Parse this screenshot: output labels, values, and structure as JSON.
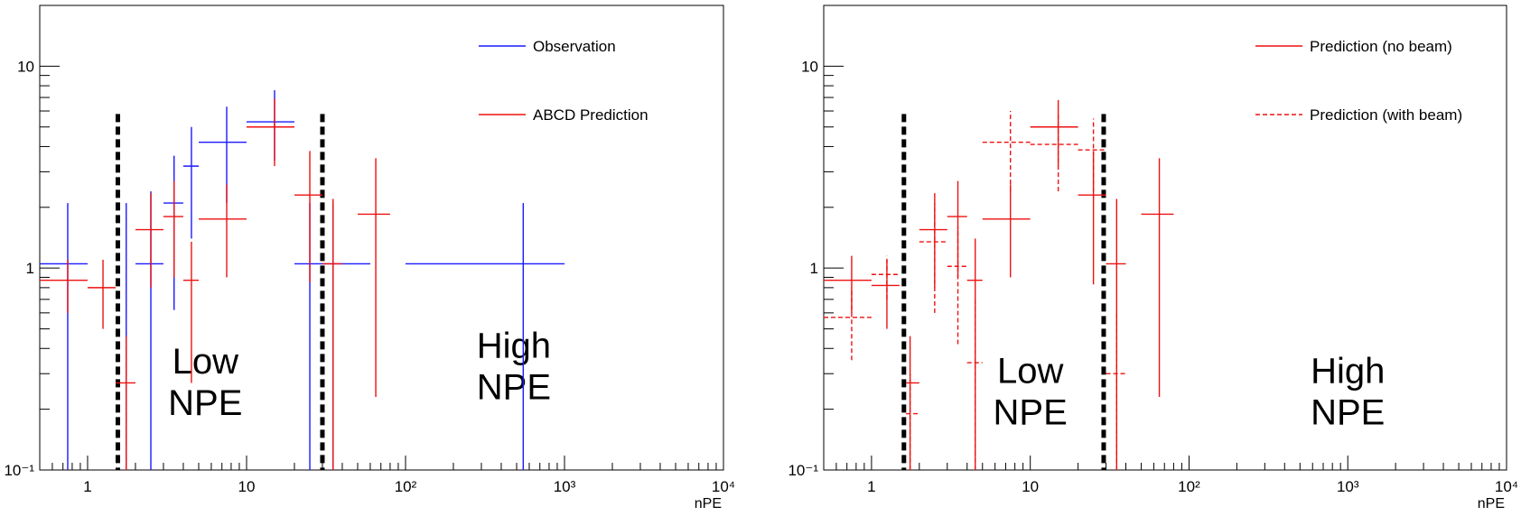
{
  "chart_data": [
    {
      "type": "scatter",
      "subtype": "errorbar",
      "scale": {
        "x": "log",
        "y": "log"
      },
      "xlabel": "nPE",
      "ylabel": "",
      "xlim": [
        0.5,
        10000
      ],
      "ylim": [
        0.1,
        20
      ],
      "x_tick_labels": [
        "1",
        "10",
        "10²",
        "10³",
        "10⁴"
      ],
      "x_tick_values": [
        1,
        10,
        100,
        1000,
        10000
      ],
      "y_tick_labels": [
        "10⁻¹",
        "1",
        "10"
      ],
      "y_tick_values": [
        0.1,
        1,
        10
      ],
      "grid": false,
      "legend_position": "top-right",
      "region_boundaries": [
        1.55,
        30
      ],
      "region_labels": [
        {
          "lines": [
            "Low",
            "NPE"
          ],
          "x": 5.5,
          "y": 0.3
        },
        {
          "lines": [
            "High",
            "NPE"
          ],
          "x": 480,
          "y": 0.36
        }
      ],
      "series": [
        {
          "name": "Observation",
          "color": "#1a1aff",
          "dashed": false,
          "points": [
            {
              "x": 0.75,
              "xlo": 0.5,
              "xhi": 1.0,
              "y": 1.05,
              "ylo": 0.0,
              "yhi": 2.1
            },
            {
              "x": 1.75,
              "xlo": 1.5,
              "xhi": 2.0,
              "y": 0.0,
              "ylo": 0.0,
              "yhi": 2.1
            },
            {
              "x": 2.5,
              "xlo": 2.0,
              "xhi": 3.0,
              "y": 1.05,
              "ylo": 0.0,
              "yhi": 2.4
            },
            {
              "x": 3.5,
              "xlo": 3.0,
              "xhi": 4.0,
              "y": 2.1,
              "ylo": 0.62,
              "yhi": 3.6
            },
            {
              "x": 4.5,
              "xlo": 4.0,
              "xhi": 5.0,
              "y": 3.2,
              "ylo": 1.4,
              "yhi": 5.0
            },
            {
              "x": 7.5,
              "xlo": 5.0,
              "xhi": 10.0,
              "y": 4.2,
              "ylo": 2.1,
              "yhi": 6.3
            },
            {
              "x": 15,
              "xlo": 10.0,
              "xhi": 20.0,
              "y": 5.3,
              "ylo": 3.4,
              "yhi": 7.6
            },
            {
              "x": 25,
              "xlo": 20.0,
              "xhi": 30.0,
              "y": 1.05,
              "ylo": 0.0,
              "yhi": 2.1
            },
            {
              "x": 35,
              "xlo": 30.0,
              "xhi": 60.0,
              "y": 1.05,
              "ylo": 0.0,
              "yhi": 2.1
            },
            {
              "x": 550,
              "xlo": 100.0,
              "xhi": 1000.0,
              "y": 1.05,
              "ylo": 0.0,
              "yhi": 2.1
            }
          ]
        },
        {
          "name": "ABCD Prediction",
          "color": "#ee1111",
          "dashed": false,
          "points": [
            {
              "x": 0.75,
              "xlo": 0.5,
              "xhi": 1.0,
              "y": 0.87,
              "ylo": 0.6,
              "yhi": 1.1
            },
            {
              "x": 1.25,
              "xlo": 1.0,
              "xhi": 1.5,
              "y": 0.8,
              "ylo": 0.5,
              "yhi": 1.1
            },
            {
              "x": 1.75,
              "xlo": 1.5,
              "xhi": 2.0,
              "y": 0.27,
              "ylo": 0.0,
              "yhi": 0.46
            },
            {
              "x": 2.5,
              "xlo": 2.0,
              "xhi": 3.0,
              "y": 1.55,
              "ylo": 0.8,
              "yhi": 2.35
            },
            {
              "x": 3.5,
              "xlo": 3.0,
              "xhi": 4.0,
              "y": 1.8,
              "ylo": 0.9,
              "yhi": 2.7
            },
            {
              "x": 4.5,
              "xlo": 4.0,
              "xhi": 5.0,
              "y": 0.87,
              "ylo": 0.27,
              "yhi": 1.35
            },
            {
              "x": 7.5,
              "xlo": 5.0,
              "xhi": 10.0,
              "y": 1.75,
              "ylo": 0.9,
              "yhi": 2.6
            },
            {
              "x": 15,
              "xlo": 10.0,
              "xhi": 20.0,
              "y": 5.0,
              "ylo": 3.2,
              "yhi": 6.9
            },
            {
              "x": 25,
              "xlo": 20.0,
              "xhi": 30.0,
              "y": 2.3,
              "ylo": 0.85,
              "yhi": 3.8
            },
            {
              "x": 35,
              "xlo": 30.0,
              "xhi": 40.0,
              "y": 1.05,
              "ylo": 0.0,
              "yhi": 2.2
            },
            {
              "x": 65,
              "xlo": 50.0,
              "xhi": 80.0,
              "y": 1.85,
              "ylo": 0.23,
              "yhi": 3.5
            }
          ]
        }
      ]
    },
    {
      "type": "scatter",
      "subtype": "errorbar",
      "scale": {
        "x": "log",
        "y": "log"
      },
      "xlabel": "nPE",
      "ylabel": "",
      "xlim": [
        0.5,
        10000
      ],
      "ylim": [
        0.1,
        20
      ],
      "x_tick_labels": [
        "1",
        "10",
        "10²",
        "10³",
        "10⁴"
      ],
      "x_tick_values": [
        1,
        10,
        100,
        1000,
        10000
      ],
      "y_tick_labels": [
        "10⁻¹",
        "1",
        "10"
      ],
      "y_tick_values": [
        0.1,
        1,
        10
      ],
      "grid": false,
      "legend_position": "top-right",
      "region_boundaries": [
        1.6,
        29
      ],
      "region_labels": [
        {
          "lines": [
            "Low",
            "NPE"
          ],
          "x": 10,
          "y": 0.27
        },
        {
          "lines": [
            "High",
            "NPE"
          ],
          "x": 1000,
          "y": 0.27
        }
      ],
      "series": [
        {
          "name": "Prediction (no beam)",
          "color": "#ee1111",
          "dashed": false,
          "points": [
            {
              "x": 0.75,
              "xlo": 0.5,
              "xhi": 1.0,
              "y": 0.87,
              "ylo": 0.6,
              "yhi": 1.15
            },
            {
              "x": 1.25,
              "xlo": 1.0,
              "xhi": 1.5,
              "y": 0.82,
              "ylo": 0.5,
              "yhi": 1.1
            },
            {
              "x": 1.75,
              "xlo": 1.65,
              "xhi": 2.0,
              "y": 0.27,
              "ylo": 0.0,
              "yhi": 0.46
            },
            {
              "x": 2.5,
              "xlo": 2.0,
              "xhi": 3.0,
              "y": 1.55,
              "ylo": 0.8,
              "yhi": 2.35
            },
            {
              "x": 3.5,
              "xlo": 3.0,
              "xhi": 4.0,
              "y": 1.8,
              "ylo": 0.9,
              "yhi": 2.7
            },
            {
              "x": 4.5,
              "xlo": 4.0,
              "xhi": 5.0,
              "y": 0.87,
              "ylo": 0.0,
              "yhi": 1.4
            },
            {
              "x": 7.5,
              "xlo": 5.0,
              "xhi": 10.0,
              "y": 1.75,
              "ylo": 0.9,
              "yhi": 2.6
            },
            {
              "x": 15,
              "xlo": 10.0,
              "xhi": 20.0,
              "y": 5.0,
              "ylo": 3.2,
              "yhi": 6.8
            },
            {
              "x": 25,
              "xlo": 20.0,
              "xhi": 30.0,
              "y": 2.3,
              "ylo": 0.83,
              "yhi": 3.8
            },
            {
              "x": 35,
              "xlo": 30.0,
              "xhi": 40.0,
              "y": 1.05,
              "ylo": 0.0,
              "yhi": 2.2
            },
            {
              "x": 65,
              "xlo": 50.0,
              "xhi": 80.0,
              "y": 1.85,
              "ylo": 0.23,
              "yhi": 3.5
            }
          ]
        },
        {
          "name": "Prediction (with beam)",
          "color": "#ee1111",
          "dashed": true,
          "points": [
            {
              "x": 0.75,
              "xlo": 0.5,
              "xhi": 1.0,
              "y": 0.57,
              "ylo": 0.35,
              "yhi": 0.8
            },
            {
              "x": 1.25,
              "xlo": 1.0,
              "xhi": 1.5,
              "y": 0.93,
              "ylo": 0.7,
              "yhi": 1.15
            },
            {
              "x": 1.75,
              "xlo": 1.65,
              "xhi": 2.0,
              "y": 0.19,
              "ylo": 0.0,
              "yhi": 0.3
            },
            {
              "x": 2.5,
              "xlo": 2.0,
              "xhi": 3.0,
              "y": 1.35,
              "ylo": 0.6,
              "yhi": 2.1
            },
            {
              "x": 3.5,
              "xlo": 3.0,
              "xhi": 4.0,
              "y": 1.02,
              "ylo": 0.42,
              "yhi": 1.6
            },
            {
              "x": 4.5,
              "xlo": 4.0,
              "xhi": 5.0,
              "y": 0.34,
              "ylo": 0.0,
              "yhi": 0.7
            },
            {
              "x": 7.5,
              "xlo": 5.0,
              "xhi": 10.0,
              "y": 4.2,
              "ylo": 2.4,
              "yhi": 6.0
            },
            {
              "x": 15,
              "xlo": 10.0,
              "xhi": 20.0,
              "y": 4.1,
              "ylo": 2.4,
              "yhi": 5.8
            },
            {
              "x": 25,
              "xlo": 20.0,
              "xhi": 30.0,
              "y": 3.85,
              "ylo": 2.2,
              "yhi": 5.5
            },
            {
              "x": 35,
              "xlo": 30.0,
              "xhi": 40.0,
              "y": 0.3,
              "ylo": 0.0,
              "yhi": 0.6
            }
          ]
        }
      ]
    }
  ]
}
